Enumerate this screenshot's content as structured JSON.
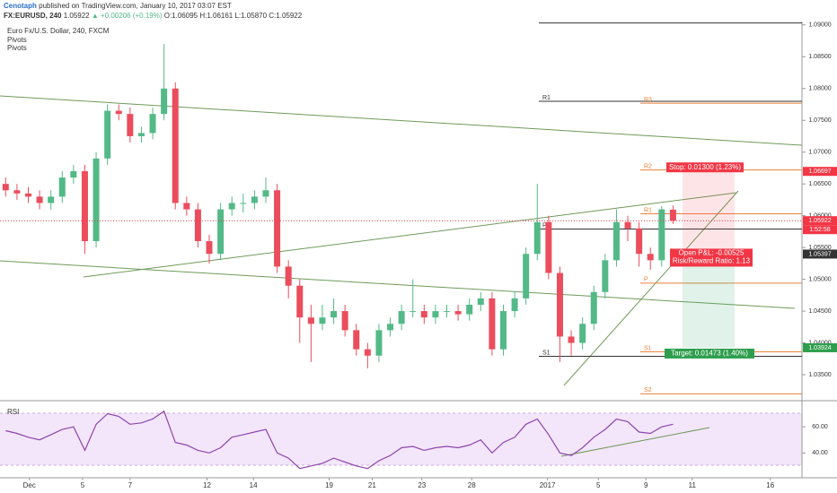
{
  "header": {
    "author": "Cenotaph",
    "published": "published on TradingView.com, January 10, 2017 03:07 EST",
    "symbol": "FX:EURUSD, 240",
    "last": "1.05922",
    "change": "▲ +0.00206 (+0.19%)",
    "ohlc": "O:1.06095 H:1.06161 L:1.05870 C:1.05922"
  },
  "legend": [
    "Euro Fx/U.S. Dollar, 240, FXCM",
    "Pivots",
    "Pivots"
  ],
  "chart_data": [
    {
      "type": "candlestick",
      "up_color": "#53b987",
      "down_color": "#eb4d5c",
      "xlim": [
        -0.5,
        70.4
      ],
      "xticks": [
        {
          "value": 2.1,
          "label": "Dec"
        },
        {
          "value": 6.8,
          "label": "5"
        },
        {
          "value": 11,
          "label": "7"
        },
        {
          "value": 17.8,
          "label": "12"
        },
        {
          "value": 21.9,
          "label": "14"
        },
        {
          "value": 28.6,
          "label": "19"
        },
        {
          "value": 32.4,
          "label": "21"
        },
        {
          "value": 36.8,
          "label": "23"
        },
        {
          "value": 41.2,
          "label": "28"
        },
        {
          "value": 47.9,
          "label": "2017"
        },
        {
          "value": 52.4,
          "label": "5"
        },
        {
          "value": 56.6,
          "label": "9"
        },
        {
          "value": 60.7,
          "label": "11"
        },
        {
          "value": 67.6,
          "label": "16"
        }
      ],
      "ylim": [
        1.0312,
        1.0911
      ],
      "yticks": [
        {
          "value": 1.09,
          "label": "1.09000"
        },
        {
          "value": 1.085,
          "label": "1.08500"
        },
        {
          "value": 1.08,
          "label": "1.08000"
        },
        {
          "value": 1.075,
          "label": "1.07500"
        },
        {
          "value": 1.07,
          "label": "1.07000"
        },
        {
          "value": 1.065,
          "label": "1.06500"
        },
        {
          "value": 1.06,
          "label": "1.06000"
        },
        {
          "value": 1.055,
          "label": "1.05500"
        },
        {
          "value": 1.05,
          "label": "1.05000"
        },
        {
          "value": 1.045,
          "label": "1.04500"
        },
        {
          "value": 1.04,
          "label": "1.04000"
        },
        {
          "value": 1.035,
          "label": "1.03500"
        }
      ],
      "open": [
        1.065,
        1.064,
        1.0635,
        1.063,
        1.062,
        1.063,
        1.066,
        1.067,
        1.056,
        1.069,
        1.0765,
        1.076,
        1.0725,
        1.073,
        1.076,
        1.08,
        1.062,
        1.061,
        1.056,
        1.054,
        1.061,
        1.062,
        1.062,
        1.063,
        1.064,
        1.052,
        1.049,
        1.044,
        1.043,
        1.044,
        1.045,
        1.042,
        1.039,
        1.038,
        1.042,
        1.043,
        1.045,
        1.045,
        1.044,
        1.045,
        1.045,
        1.0445,
        1.046,
        1.047,
        1.039,
        1.045,
        1.047,
        1.054,
        1.059,
        1.051,
        1.041,
        1.04,
        1.043,
        1.048,
        1.053,
        1.059,
        1.058,
        1.054,
        1.053,
        1.06095
      ],
      "high": [
        1.066,
        1.065,
        1.0645,
        1.064,
        1.064,
        1.067,
        1.068,
        1.068,
        1.07,
        1.0775,
        1.0775,
        1.077,
        1.074,
        1.077,
        1.087,
        1.081,
        1.063,
        1.062,
        1.057,
        1.062,
        1.063,
        1.0635,
        1.064,
        1.066,
        1.065,
        1.053,
        1.05,
        1.046,
        1.046,
        1.047,
        1.046,
        1.043,
        1.04,
        1.043,
        1.044,
        1.046,
        1.05,
        1.046,
        1.046,
        1.046,
        1.046,
        1.047,
        1.048,
        1.048,
        1.046,
        1.048,
        1.055,
        1.065,
        1.06,
        1.052,
        1.042,
        1.044,
        1.049,
        1.054,
        1.061,
        1.06,
        1.059,
        1.055,
        1.0615,
        1.06161
      ],
      "low": [
        1.063,
        1.0625,
        1.062,
        1.061,
        1.061,
        1.062,
        1.065,
        1.054,
        1.055,
        1.068,
        1.075,
        1.0715,
        1.0715,
        1.072,
        1.075,
        1.061,
        1.06,
        1.055,
        1.0525,
        1.053,
        1.06,
        1.0605,
        1.061,
        1.062,
        1.051,
        1.047,
        1.04,
        1.037,
        1.042,
        1.043,
        1.041,
        1.038,
        1.036,
        1.037,
        1.041,
        1.042,
        1.044,
        1.043,
        1.043,
        1.044,
        1.0435,
        1.0435,
        1.045,
        1.038,
        1.038,
        1.044,
        1.046,
        1.053,
        1.05,
        1.037,
        1.038,
        1.039,
        1.042,
        1.047,
        1.052,
        1.056,
        1.052,
        1.0515,
        1.052,
        1.0587
      ],
      "close": [
        1.064,
        1.0635,
        1.063,
        1.062,
        1.063,
        1.066,
        1.067,
        1.056,
        1.069,
        1.0765,
        1.076,
        1.0725,
        1.073,
        1.076,
        1.08,
        1.062,
        1.061,
        1.056,
        1.054,
        1.061,
        1.062,
        1.062,
        1.063,
        1.064,
        1.052,
        1.049,
        1.044,
        1.043,
        1.044,
        1.045,
        1.042,
        1.039,
        1.038,
        1.042,
        1.043,
        1.045,
        1.045,
        1.044,
        1.045,
        1.045,
        1.0445,
        1.046,
        1.047,
        1.039,
        1.045,
        1.047,
        1.054,
        1.059,
        1.051,
        1.041,
        1.04,
        1.043,
        1.048,
        1.053,
        1.059,
        1.058,
        1.054,
        1.053,
        1.061,
        1.05922
      ],
      "last_label": "1.05922",
      "countdown": "1:52:58",
      "last_color": "#f23645",
      "pivots": [
        {
          "name": "R2",
          "value": 1.0903,
          "color": "#333333"
        },
        {
          "name": "R1",
          "value": 1.078,
          "color": "#333333"
        },
        {
          "name": "P",
          "value": 1.0579,
          "color": "#333333"
        },
        {
          "name": "S1",
          "value": 1.0379,
          "color": "#333333"
        },
        {
          "name": "R3",
          "value": 1.0777,
          "color": "#e8833a"
        },
        {
          "name": "R2",
          "value": 1.0672,
          "color": "#e8833a"
        },
        {
          "name": "R1",
          "value": 1.0603,
          "color": "#e8833a"
        },
        {
          "name": "P",
          "value": 1.0494,
          "color": "#e8833a"
        },
        {
          "name": "S1",
          "value": 1.0386,
          "color": "#e8833a"
        },
        {
          "name": "S2",
          "value": 1.032,
          "color": "#e8833a"
        }
      ],
      "position": {
        "entry": 1.05397,
        "entry_label": "1.05397",
        "stop": 1.06697,
        "stop_label": "1.06697",
        "target": 1.03924,
        "target_label": "1.03924",
        "stop_text": "Stop: 0.01300 (1.23%)",
        "pnl_text": "Open P&L: -0.00525",
        "rr_text": "Risk/Reward Ratio: 1.13",
        "target_text": "Target: 0.01473 (1.40%)"
      }
    },
    {
      "type": "line",
      "name": "RSI",
      "color": "#8e44ad",
      "ylim": [
        23,
        78
      ],
      "yticks": [
        {
          "value": 60,
          "label": "60.00"
        },
        {
          "value": 40,
          "label": "40.00"
        }
      ],
      "values": [
        57,
        55,
        52,
        50,
        54,
        58,
        60,
        42,
        62,
        70,
        68,
        62,
        63,
        66,
        72,
        48,
        46,
        42,
        40,
        44,
        52,
        54,
        56,
        58,
        40,
        36,
        28,
        30,
        32,
        36,
        33,
        30,
        28,
        34,
        38,
        44,
        45,
        42,
        44,
        45,
        44,
        46,
        50,
        40,
        48,
        52,
        62,
        66,
        54,
        40,
        38,
        44,
        52,
        58,
        66,
        64,
        56,
        55,
        60,
        62
      ]
    }
  ]
}
